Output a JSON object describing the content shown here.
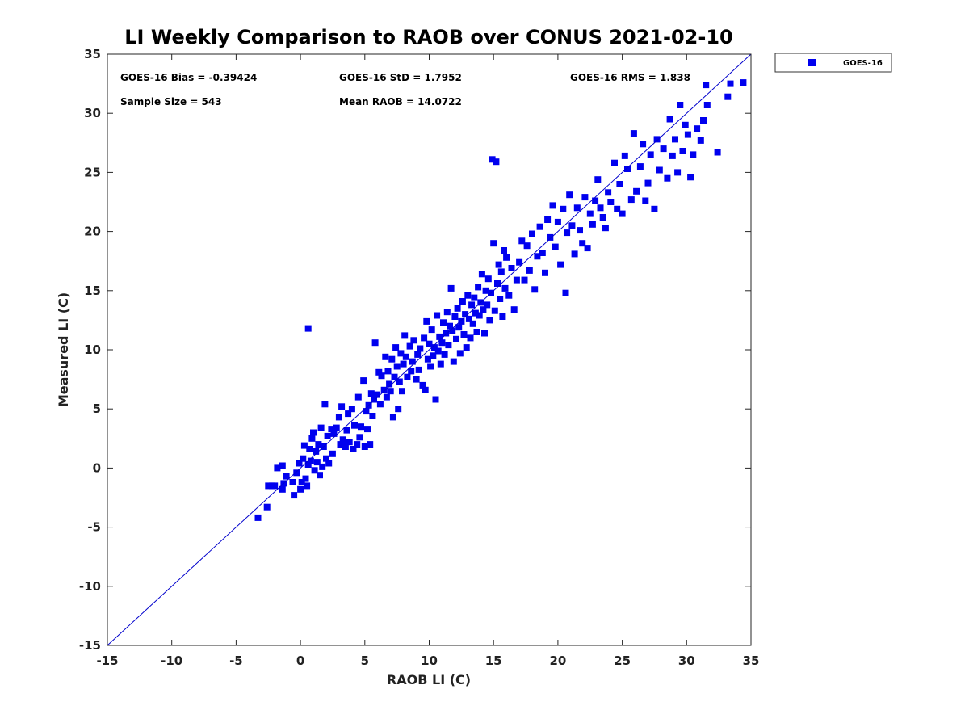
{
  "chart_data": {
    "type": "scatter",
    "title": "LI Weekly Comparison to RAOB over CONUS 2021-02-10",
    "xlabel": "RAOB LI (C)",
    "ylabel": "Measured LI (C)",
    "xlim": [
      -15,
      35
    ],
    "ylim": [
      -15,
      35
    ],
    "xticks": [
      -15,
      -10,
      -5,
      0,
      5,
      10,
      15,
      20,
      25,
      30,
      35
    ],
    "yticks": [
      -15,
      -10,
      -5,
      0,
      5,
      10,
      15,
      20,
      25,
      30,
      35
    ],
    "grid": false,
    "legend_position": "outside-top-right",
    "reference_line": {
      "name": "1:1 line",
      "from": [
        -15,
        -15
      ],
      "to": [
        35,
        35
      ],
      "color": "#0000cc"
    },
    "stats": {
      "bias": "GOES-16 Bias = -0.39424",
      "std": "GOES-16 StD = 1.7952",
      "rms": "GOES-16 RMS = 1.838",
      "sample_size": "Sample Size = 543",
      "mean_raob": "Mean RAOB = 14.0722"
    },
    "series": [
      {
        "name": "GOES-16",
        "color": "#0000ee",
        "marker": "square",
        "points": [
          [
            -3.3,
            -4.2
          ],
          [
            -2.6,
            -3.3
          ],
          [
            -2.5,
            -1.5
          ],
          [
            -2.2,
            -1.5
          ],
          [
            -2.0,
            -1.5
          ],
          [
            -1.8,
            0.0
          ],
          [
            -1.4,
            0.2
          ],
          [
            -1.4,
            -1.8
          ],
          [
            -1.3,
            -1.3
          ],
          [
            -1.1,
            -0.7
          ],
          [
            -0.6,
            -1.2
          ],
          [
            -0.5,
            -2.3
          ],
          [
            -0.3,
            -0.4
          ],
          [
            -0.1,
            0.4
          ],
          [
            0.0,
            -1.8
          ],
          [
            0.1,
            -1.2
          ],
          [
            0.2,
            0.8
          ],
          [
            0.3,
            1.9
          ],
          [
            0.4,
            -0.9
          ],
          [
            0.5,
            -1.5
          ],
          [
            0.6,
            11.8
          ],
          [
            0.6,
            0.3
          ],
          [
            0.7,
            1.6
          ],
          [
            0.8,
            0.6
          ],
          [
            0.9,
            2.5
          ],
          [
            1.0,
            3.0
          ],
          [
            1.1,
            -0.2
          ],
          [
            1.2,
            1.4
          ],
          [
            1.3,
            0.5
          ],
          [
            1.4,
            2.0
          ],
          [
            1.5,
            -0.6
          ],
          [
            1.6,
            3.4
          ],
          [
            1.7,
            0.1
          ],
          [
            1.8,
            1.8
          ],
          [
            1.9,
            5.4
          ],
          [
            2.0,
            0.8
          ],
          [
            2.1,
            2.7
          ],
          [
            2.2,
            0.4
          ],
          [
            2.4,
            3.3
          ],
          [
            2.5,
            1.2
          ],
          [
            2.6,
            2.9
          ],
          [
            2.8,
            3.4
          ],
          [
            3.0,
            4.3
          ],
          [
            3.1,
            2.0
          ],
          [
            3.2,
            5.2
          ],
          [
            3.3,
            2.4
          ],
          [
            3.5,
            1.8
          ],
          [
            3.6,
            3.2
          ],
          [
            3.7,
            4.6
          ],
          [
            3.8,
            2.2
          ],
          [
            4.0,
            5.0
          ],
          [
            4.1,
            1.6
          ],
          [
            4.2,
            3.6
          ],
          [
            4.4,
            2.0
          ],
          [
            4.5,
            6.0
          ],
          [
            4.6,
            2.6
          ],
          [
            4.7,
            3.5
          ],
          [
            4.9,
            7.4
          ],
          [
            5.0,
            1.8
          ],
          [
            5.1,
            4.8
          ],
          [
            5.2,
            3.3
          ],
          [
            5.3,
            5.3
          ],
          [
            5.4,
            2.0
          ],
          [
            5.5,
            6.3
          ],
          [
            5.6,
            4.4
          ],
          [
            5.7,
            5.8
          ],
          [
            5.8,
            10.6
          ],
          [
            5.9,
            6.2
          ],
          [
            6.1,
            8.1
          ],
          [
            6.2,
            5.4
          ],
          [
            6.3,
            7.8
          ],
          [
            6.5,
            6.6
          ],
          [
            6.6,
            9.4
          ],
          [
            6.7,
            6.0
          ],
          [
            6.8,
            8.2
          ],
          [
            6.9,
            7.1
          ],
          [
            7.0,
            6.5
          ],
          [
            7.1,
            9.2
          ],
          [
            7.2,
            4.3
          ],
          [
            7.3,
            7.7
          ],
          [
            7.4,
            10.2
          ],
          [
            7.5,
            8.6
          ],
          [
            7.6,
            5.0
          ],
          [
            7.7,
            7.3
          ],
          [
            7.8,
            9.7
          ],
          [
            7.9,
            6.5
          ],
          [
            8.0,
            8.8
          ],
          [
            8.1,
            11.2
          ],
          [
            8.2,
            9.4
          ],
          [
            8.3,
            7.7
          ],
          [
            8.5,
            10.3
          ],
          [
            8.6,
            8.2
          ],
          [
            8.7,
            9.0
          ],
          [
            8.8,
            10.8
          ],
          [
            9.0,
            7.5
          ],
          [
            9.1,
            9.6
          ],
          [
            9.2,
            8.3
          ],
          [
            9.3,
            10.1
          ],
          [
            9.5,
            7.0
          ],
          [
            9.6,
            11.0
          ],
          [
            9.7,
            6.6
          ],
          [
            9.8,
            12.4
          ],
          [
            9.9,
            9.2
          ],
          [
            10.0,
            10.5
          ],
          [
            10.1,
            8.6
          ],
          [
            10.2,
            11.7
          ],
          [
            10.3,
            9.5
          ],
          [
            10.4,
            10.2
          ],
          [
            10.5,
            5.8
          ],
          [
            10.6,
            12.9
          ],
          [
            10.7,
            9.9
          ],
          [
            10.8,
            11.1
          ],
          [
            10.9,
            8.8
          ],
          [
            11.0,
            10.6
          ],
          [
            11.1,
            12.3
          ],
          [
            11.2,
            9.6
          ],
          [
            11.3,
            11.4
          ],
          [
            11.4,
            13.2
          ],
          [
            11.5,
            10.4
          ],
          [
            11.6,
            12.0
          ],
          [
            11.7,
            15.2
          ],
          [
            11.8,
            11.6
          ],
          [
            11.9,
            9.0
          ],
          [
            12.0,
            12.8
          ],
          [
            12.1,
            10.9
          ],
          [
            12.2,
            13.5
          ],
          [
            12.3,
            11.9
          ],
          [
            12.4,
            9.7
          ],
          [
            12.5,
            12.4
          ],
          [
            12.6,
            14.1
          ],
          [
            12.7,
            11.3
          ],
          [
            12.8,
            13.0
          ],
          [
            12.9,
            10.2
          ],
          [
            13.0,
            14.6
          ],
          [
            13.1,
            12.6
          ],
          [
            13.2,
            11.0
          ],
          [
            13.3,
            13.8
          ],
          [
            13.4,
            12.2
          ],
          [
            13.5,
            14.4
          ],
          [
            13.6,
            13.1
          ],
          [
            13.7,
            11.5
          ],
          [
            13.8,
            15.3
          ],
          [
            13.9,
            12.9
          ],
          [
            14.0,
            14.0
          ],
          [
            14.1,
            16.4
          ],
          [
            14.2,
            13.4
          ],
          [
            14.3,
            11.4
          ],
          [
            14.4,
            15.0
          ],
          [
            14.5,
            13.8
          ],
          [
            14.6,
            16.0
          ],
          [
            14.7,
            12.5
          ],
          [
            14.8,
            14.8
          ],
          [
            14.9,
            26.1
          ],
          [
            15.0,
            19.0
          ],
          [
            15.1,
            13.3
          ],
          [
            15.2,
            25.9
          ],
          [
            15.3,
            15.6
          ],
          [
            15.4,
            17.2
          ],
          [
            15.5,
            14.3
          ],
          [
            15.6,
            16.6
          ],
          [
            15.7,
            12.8
          ],
          [
            15.8,
            18.4
          ],
          [
            15.9,
            15.2
          ],
          [
            16.0,
            17.8
          ],
          [
            16.2,
            14.6
          ],
          [
            16.4,
            16.9
          ],
          [
            16.6,
            13.4
          ],
          [
            16.8,
            15.9
          ],
          [
            17.0,
            17.4
          ],
          [
            17.2,
            19.2
          ],
          [
            17.4,
            15.9
          ],
          [
            17.6,
            18.8
          ],
          [
            17.8,
            16.7
          ],
          [
            18.0,
            19.8
          ],
          [
            18.2,
            15.1
          ],
          [
            18.4,
            17.9
          ],
          [
            18.6,
            20.4
          ],
          [
            18.8,
            18.2
          ],
          [
            19.0,
            16.5
          ],
          [
            19.2,
            21.0
          ],
          [
            19.4,
            19.5
          ],
          [
            19.6,
            22.2
          ],
          [
            19.8,
            18.7
          ],
          [
            20.0,
            20.8
          ],
          [
            20.2,
            17.2
          ],
          [
            20.4,
            21.9
          ],
          [
            20.6,
            14.8
          ],
          [
            20.7,
            19.9
          ],
          [
            20.9,
            23.1
          ],
          [
            21.1,
            20.5
          ],
          [
            21.3,
            18.1
          ],
          [
            21.5,
            22.0
          ],
          [
            21.7,
            20.1
          ],
          [
            21.9,
            19.0
          ],
          [
            22.1,
            22.9
          ],
          [
            22.3,
            18.6
          ],
          [
            22.5,
            21.5
          ],
          [
            22.7,
            20.6
          ],
          [
            22.9,
            22.6
          ],
          [
            23.1,
            24.4
          ],
          [
            23.3,
            22.0
          ],
          [
            23.5,
            21.2
          ],
          [
            23.7,
            20.3
          ],
          [
            23.9,
            23.3
          ],
          [
            24.1,
            22.5
          ],
          [
            24.4,
            25.8
          ],
          [
            24.6,
            21.9
          ],
          [
            24.8,
            24.0
          ],
          [
            25.0,
            21.5
          ],
          [
            25.2,
            26.4
          ],
          [
            25.4,
            25.3
          ],
          [
            25.7,
            22.7
          ],
          [
            25.9,
            28.3
          ],
          [
            26.1,
            23.4
          ],
          [
            26.4,
            25.5
          ],
          [
            26.6,
            27.4
          ],
          [
            26.8,
            22.6
          ],
          [
            27.0,
            24.1
          ],
          [
            27.2,
            26.5
          ],
          [
            27.5,
            21.9
          ],
          [
            27.7,
            27.8
          ],
          [
            27.9,
            25.2
          ],
          [
            28.2,
            27.0
          ],
          [
            28.5,
            24.5
          ],
          [
            28.7,
            29.5
          ],
          [
            28.9,
            26.4
          ],
          [
            29.1,
            27.8
          ],
          [
            29.3,
            25.0
          ],
          [
            29.5,
            30.7
          ],
          [
            29.7,
            26.8
          ],
          [
            29.9,
            29.0
          ],
          [
            30.1,
            28.2
          ],
          [
            30.3,
            24.6
          ],
          [
            30.5,
            26.5
          ],
          [
            30.8,
            28.7
          ],
          [
            31.1,
            27.7
          ],
          [
            31.3,
            29.4
          ],
          [
            31.5,
            32.4
          ],
          [
            31.6,
            30.7
          ],
          [
            32.4,
            26.7
          ],
          [
            33.2,
            31.4
          ],
          [
            33.4,
            32.5
          ],
          [
            34.4,
            32.6
          ]
        ]
      }
    ]
  }
}
